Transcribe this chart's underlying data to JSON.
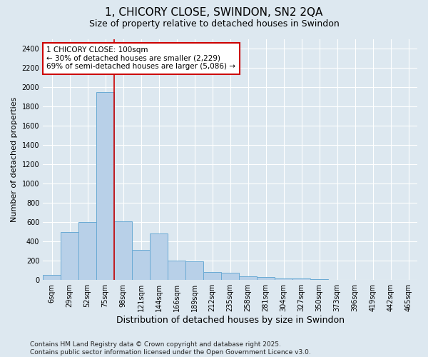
{
  "title_line1": "1, CHICORY CLOSE, SWINDON, SN2 2QA",
  "title_line2": "Size of property relative to detached houses in Swindon",
  "xlabel": "Distribution of detached houses by size in Swindon",
  "ylabel": "Number of detached properties",
  "categories": [
    "6sqm",
    "29sqm",
    "52sqm",
    "75sqm",
    "98sqm",
    "121sqm",
    "144sqm",
    "166sqm",
    "189sqm",
    "212sqm",
    "235sqm",
    "258sqm",
    "281sqm",
    "304sqm",
    "327sqm",
    "350sqm",
    "373sqm",
    "396sqm",
    "419sqm",
    "442sqm",
    "465sqm"
  ],
  "values": [
    50,
    500,
    600,
    1950,
    610,
    310,
    480,
    200,
    195,
    80,
    75,
    35,
    30,
    20,
    18,
    10,
    5,
    5,
    2,
    5,
    2
  ],
  "bar_color": "#b8d0e8",
  "bar_edge_color": "#6aaad4",
  "background_color": "#dde8f0",
  "grid_color": "#ffffff",
  "fig_background": "#dde8f0",
  "vline_x_index": 3.5,
  "vline_color": "#cc0000",
  "annotation_text": "1 CHICORY CLOSE: 100sqm\n← 30% of detached houses are smaller (2,229)\n69% of semi-detached houses are larger (5,086) →",
  "annotation_box_facecolor": "#ffffff",
  "annotation_box_edgecolor": "#cc0000",
  "ylim": [
    0,
    2500
  ],
  "yticks": [
    0,
    200,
    400,
    600,
    800,
    1000,
    1200,
    1400,
    1600,
    1800,
    2000,
    2200,
    2400
  ],
  "footer_text": "Contains HM Land Registry data © Crown copyright and database right 2025.\nContains public sector information licensed under the Open Government Licence v3.0.",
  "title_fontsize": 11,
  "subtitle_fontsize": 9,
  "axis_label_fontsize": 8,
  "tick_fontsize": 7,
  "annotation_fontsize": 7.5,
  "footer_fontsize": 6.5
}
